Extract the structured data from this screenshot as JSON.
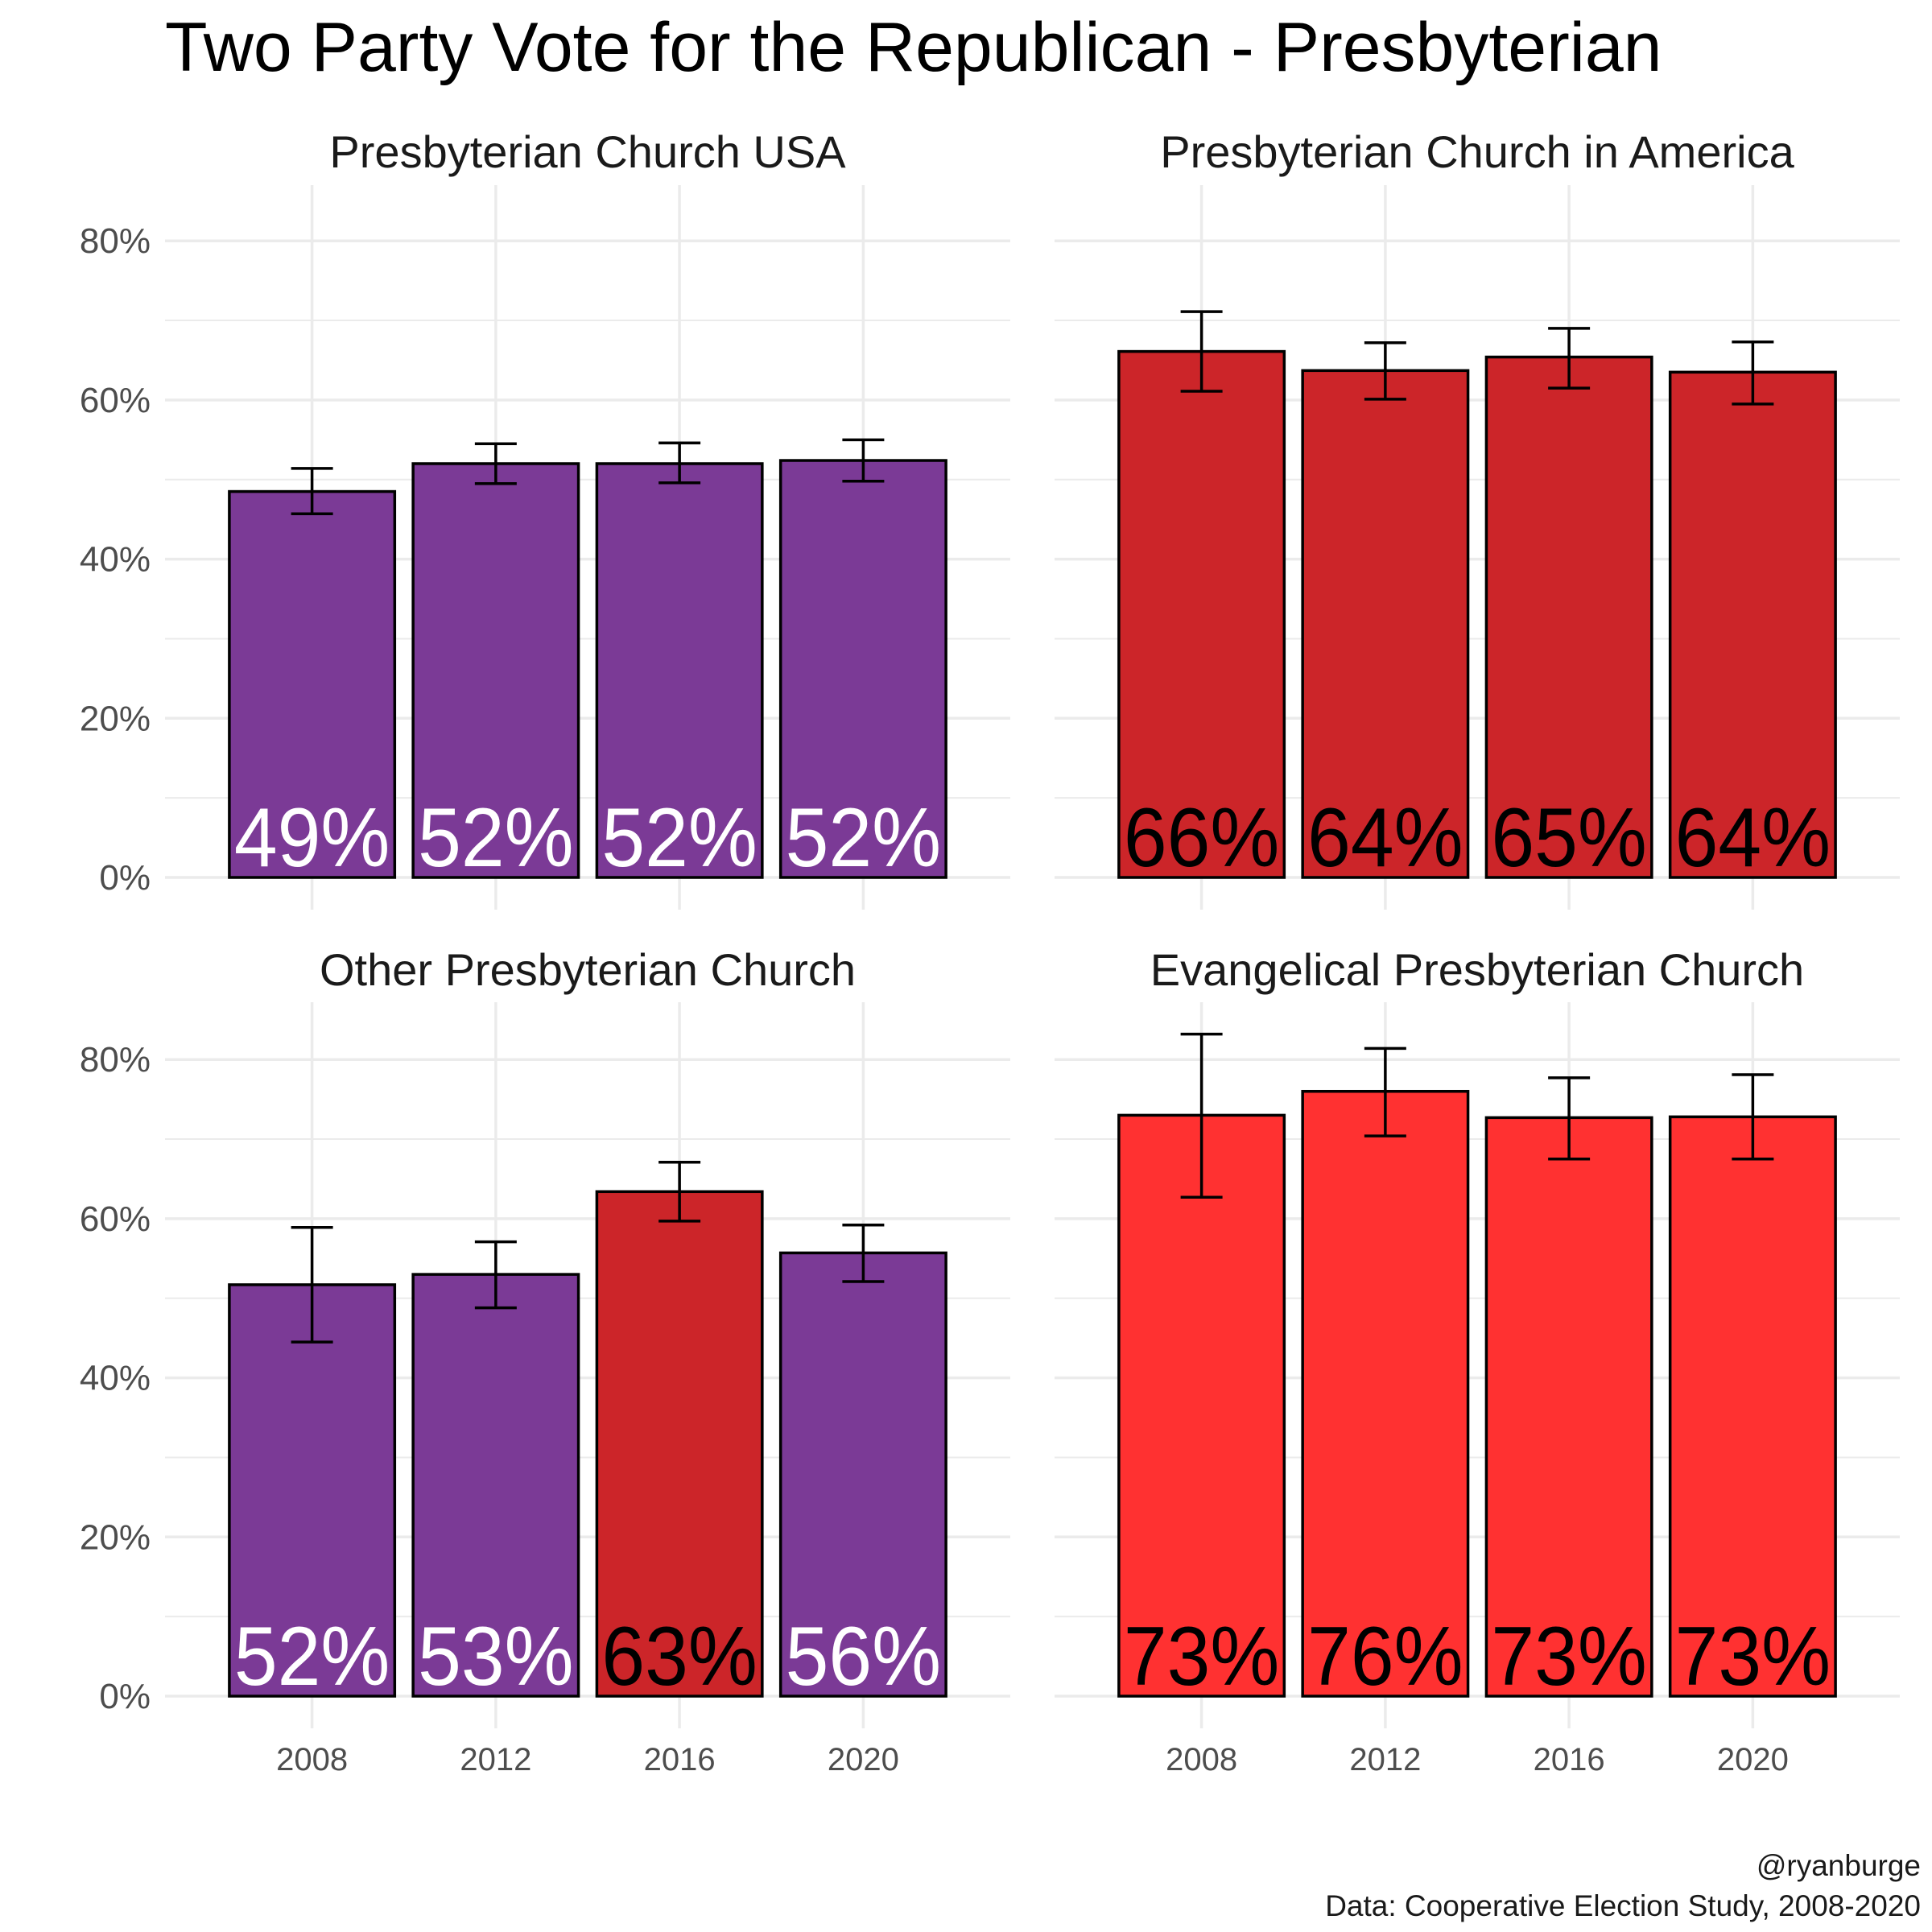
{
  "title": "Two Party Vote for the Republican - Presbyterian",
  "caption": {
    "line1": "@ryanburge",
    "line2": "Data: Cooperative Election Study, 2008-2020"
  },
  "colors": {
    "purple": "#7B3A96",
    "dark_red": "#CC2529",
    "bright_red": "#FF3131",
    "grid": "#EBEBEB",
    "outline": "#000000"
  },
  "chart_data": [
    {
      "type": "bar",
      "facet": "Presbyterian Church USA",
      "categories": [
        "2008",
        "2012",
        "2016",
        "2020"
      ],
      "values": [
        48.5,
        52.0,
        52.0,
        52.4
      ],
      "lower": [
        45.7,
        49.5,
        49.6,
        49.8
      ],
      "upper": [
        51.4,
        54.5,
        54.6,
        55.0
      ],
      "labels": [
        "49%",
        "52%",
        "52%",
        "52%"
      ],
      "bar_colors": [
        "purple",
        "purple",
        "purple",
        "purple"
      ],
      "label_colors": [
        "#FFFFFF",
        "#FFFFFF",
        "#FFFFFF",
        "#FFFFFF"
      ],
      "ylim": [
        0,
        87
      ],
      "yticks": [
        "0%",
        "20%",
        "40%",
        "60%",
        "80%"
      ]
    },
    {
      "type": "bar",
      "facet": "Presbyterian Church in America",
      "categories": [
        "2008",
        "2012",
        "2016",
        "2020"
      ],
      "values": [
        66.1,
        63.7,
        65.4,
        63.5
      ],
      "lower": [
        61.1,
        60.1,
        61.5,
        59.5
      ],
      "upper": [
        71.1,
        67.2,
        69.0,
        67.3
      ],
      "labels": [
        "66%",
        "64%",
        "65%",
        "64%"
      ],
      "bar_colors": [
        "dark_red",
        "dark_red",
        "dark_red",
        "dark_red"
      ],
      "label_colors": [
        "#000000",
        "#000000",
        "#000000",
        "#000000"
      ],
      "ylim": [
        0,
        87
      ],
      "yticks": [
        "0%",
        "20%",
        "40%",
        "60%",
        "80%"
      ]
    },
    {
      "type": "bar",
      "facet": "Other Presbyterian Church",
      "categories": [
        "2008",
        "2012",
        "2016",
        "2020"
      ],
      "values": [
        51.7,
        53.0,
        63.4,
        55.7
      ],
      "lower": [
        44.5,
        48.8,
        59.7,
        52.1
      ],
      "upper": [
        58.9,
        57.1,
        67.1,
        59.2
      ],
      "labels": [
        "52%",
        "53%",
        "63%",
        "56%"
      ],
      "bar_colors": [
        "purple",
        "purple",
        "dark_red",
        "purple"
      ],
      "label_colors": [
        "#FFFFFF",
        "#FFFFFF",
        "#000000",
        "#FFFFFF"
      ],
      "ylim": [
        0,
        87
      ],
      "yticks": [
        "0%",
        "20%",
        "40%",
        "60%",
        "80%"
      ]
    },
    {
      "type": "bar",
      "facet": "Evangelical Presbyterian Church",
      "categories": [
        "2008",
        "2012",
        "2016",
        "2020"
      ],
      "values": [
        73.0,
        76.0,
        72.7,
        72.8
      ],
      "lower": [
        62.7,
        70.4,
        67.5,
        67.5
      ],
      "upper": [
        83.2,
        81.4,
        77.7,
        78.1
      ],
      "labels": [
        "73%",
        "76%",
        "73%",
        "73%"
      ],
      "bar_colors": [
        "bright_red",
        "bright_red",
        "bright_red",
        "bright_red"
      ],
      "label_colors": [
        "#000000",
        "#000000",
        "#000000",
        "#000000"
      ],
      "ylim": [
        0,
        87
      ],
      "yticks": [
        "0%",
        "20%",
        "40%",
        "60%",
        "80%"
      ]
    }
  ]
}
